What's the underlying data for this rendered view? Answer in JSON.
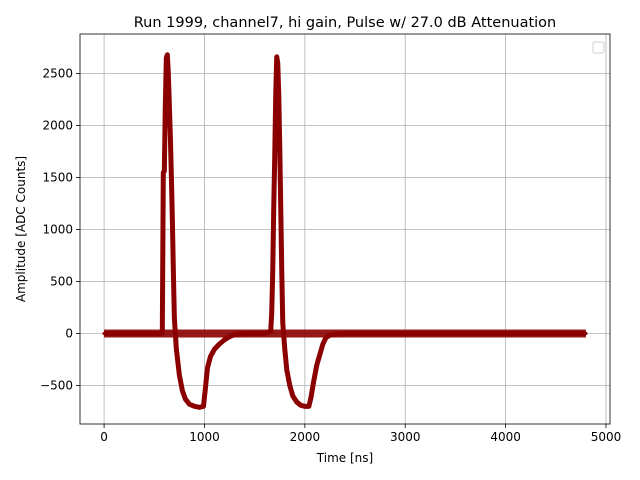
{
  "chart_data": {
    "type": "scatter",
    "title": "Run 1999, channel7, hi gain, Pulse w/ 27.0 dB Attenuation",
    "xlabel": "Time [ns]",
    "ylabel": "Amplitude [ADC Counts]",
    "xlim": [
      -240,
      5040
    ],
    "ylim": [
      -870,
      2880
    ],
    "x_ticks": [
      0,
      1000,
      2000,
      3000,
      4000,
      5000
    ],
    "y_ticks": [
      -500,
      0,
      500,
      1000,
      1500,
      2000,
      2500
    ],
    "x_tick_labels": [
      "0",
      "1000",
      "2000",
      "3000",
      "4000",
      "5000"
    ],
    "y_tick_labels": [
      "−500",
      "0",
      "500",
      "1000",
      "1500",
      "2000",
      "2500"
    ],
    "grid": true,
    "legend": "top-right (empty)",
    "series": [
      {
        "color": "#8b0000",
        "baseline_x": [
          0,
          4800
        ],
        "baseline_y": 0,
        "points": [
          [
            0,
            0
          ],
          [
            200,
            0
          ],
          [
            400,
            0
          ],
          [
            580,
            0
          ],
          [
            590,
            1550
          ],
          [
            600,
            1560
          ],
          [
            610,
            2200
          ],
          [
            620,
            2650
          ],
          [
            630,
            2680
          ],
          [
            640,
            2500
          ],
          [
            650,
            2200
          ],
          [
            660,
            1900
          ],
          [
            670,
            1520
          ],
          [
            680,
            1100
          ],
          [
            690,
            600
          ],
          [
            700,
            150
          ],
          [
            720,
            -150
          ],
          [
            750,
            -400
          ],
          [
            780,
            -550
          ],
          [
            810,
            -630
          ],
          [
            850,
            -680
          ],
          [
            900,
            -700
          ],
          [
            950,
            -710
          ],
          [
            990,
            -700
          ],
          [
            1010,
            -520
          ],
          [
            1030,
            -330
          ],
          [
            1060,
            -220
          ],
          [
            1100,
            -150
          ],
          [
            1150,
            -100
          ],
          [
            1200,
            -60
          ],
          [
            1250,
            -30
          ],
          [
            1300,
            -10
          ],
          [
            1400,
            0
          ],
          [
            1600,
            0
          ],
          [
            1660,
            20
          ],
          [
            1670,
            200
          ],
          [
            1680,
            600
          ],
          [
            1690,
            1200
          ],
          [
            1700,
            1700
          ],
          [
            1710,
            2300
          ],
          [
            1720,
            2660
          ],
          [
            1730,
            2600
          ],
          [
            1740,
            2300
          ],
          [
            1750,
            1800
          ],
          [
            1760,
            1200
          ],
          [
            1770,
            600
          ],
          [
            1780,
            100
          ],
          [
            1800,
            -150
          ],
          [
            1820,
            -350
          ],
          [
            1850,
            -500
          ],
          [
            1880,
            -600
          ],
          [
            1920,
            -660
          ],
          [
            1960,
            -690
          ],
          [
            2000,
            -700
          ],
          [
            2040,
            -700
          ],
          [
            2060,
            -620
          ],
          [
            2090,
            -450
          ],
          [
            2120,
            -300
          ],
          [
            2150,
            -200
          ],
          [
            2180,
            -100
          ],
          [
            2210,
            -40
          ],
          [
            2260,
            -10
          ],
          [
            2400,
            0
          ],
          [
            3000,
            0
          ],
          [
            3600,
            0
          ],
          [
            4200,
            0
          ],
          [
            4800,
            0
          ]
        ]
      }
    ]
  }
}
